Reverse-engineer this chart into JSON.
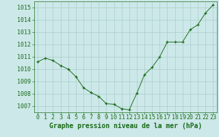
{
  "x": [
    0,
    1,
    2,
    3,
    4,
    5,
    6,
    7,
    8,
    9,
    10,
    11,
    12,
    13,
    14,
    15,
    16,
    17,
    18,
    19,
    20,
    21,
    22,
    23
  ],
  "y": [
    1010.6,
    1010.9,
    1010.7,
    1010.3,
    1010.0,
    1009.4,
    1008.5,
    1008.1,
    1007.8,
    1007.2,
    1007.15,
    1006.8,
    1006.7,
    1008.05,
    1009.55,
    1010.15,
    1011.0,
    1012.2,
    1012.2,
    1012.2,
    1013.2,
    1013.6,
    1014.55,
    1015.2
  ],
  "line_color": "#1a6b1a",
  "marker": "+",
  "marker_color": "#1a6b1a",
  "background_color": "#cce8e8",
  "grid_color": "#aacccc",
  "xlabel": "Graphe pression niveau de la mer (hPa)",
  "ylim": [
    1006.5,
    1015.5
  ],
  "yticks": [
    1007,
    1008,
    1009,
    1010,
    1011,
    1012,
    1013,
    1014,
    1015
  ],
  "xticks": [
    0,
    1,
    2,
    3,
    4,
    5,
    6,
    7,
    8,
    9,
    10,
    11,
    12,
    13,
    14,
    15,
    16,
    17,
    18,
    19,
    20,
    21,
    22,
    23
  ],
  "xlim": [
    -0.5,
    23.5
  ],
  "tick_color": "#1a6b1a",
  "xlabel_color": "#1a6b1a",
  "xlabel_fontsize": 7,
  "tick_fontsize": 6
}
